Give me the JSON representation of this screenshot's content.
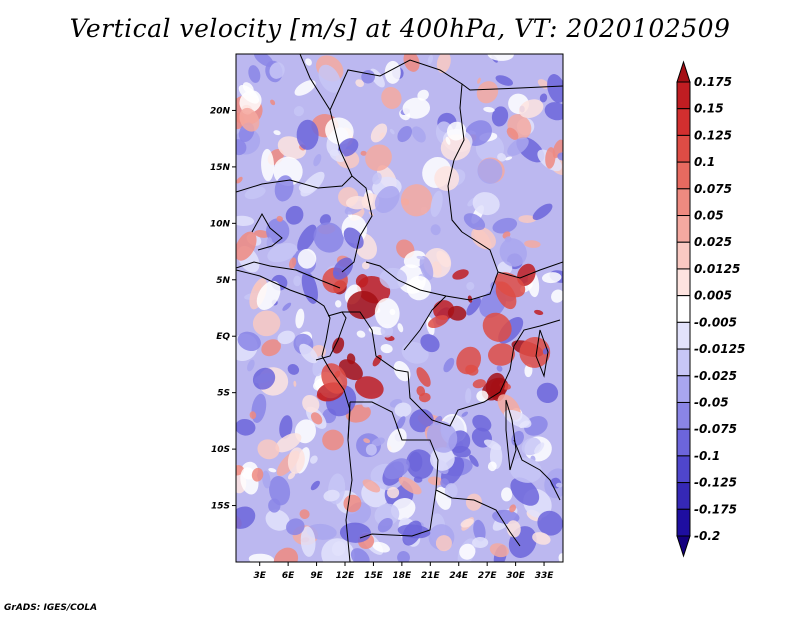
{
  "title": "Vertical velocity [m/s] at 400hPa, VT: 2020102509",
  "credit": "GrADS: IGES/COLA",
  "map": {
    "lat_labels": [
      "20N",
      "15N",
      "10N",
      "5N",
      "EQ",
      "5S",
      "10S",
      "15S"
    ],
    "lat_values": [
      20,
      15,
      10,
      5,
      0,
      -5,
      -10,
      -15
    ],
    "lon_labels": [
      "3E",
      "6E",
      "9E",
      "12E",
      "15E",
      "18E",
      "21E",
      "24E",
      "27E",
      "30E",
      "33E"
    ],
    "lon_values": [
      3,
      6,
      9,
      12,
      15,
      18,
      21,
      24,
      27,
      30,
      33
    ],
    "lat_range": [
      -20,
      25
    ],
    "lon_range": [
      0.5,
      35
    ]
  },
  "colorbar": {
    "labels": [
      "0.175",
      "0.15",
      "0.125",
      "0.1",
      "0.075",
      "0.05",
      "0.025",
      "0.0125",
      "0.005",
      "-0.005",
      "-0.0125",
      "-0.025",
      "-0.05",
      "-0.075",
      "-0.1",
      "-0.125",
      "-0.175",
      "-0.2"
    ],
    "colors": [
      "#a50f15",
      "#c01d22",
      "#d22f2f",
      "#de4c45",
      "#e76a60",
      "#ee8a80",
      "#f4a9a0",
      "#f9c9c2",
      "#fde3df",
      "#ffffff",
      "#e2e2fb",
      "#c7c6f6",
      "#a9a6ef",
      "#8a85e6",
      "#6c65db",
      "#4f46cc",
      "#3528b6",
      "#1e0ea0",
      "#14007f"
    ]
  }
}
